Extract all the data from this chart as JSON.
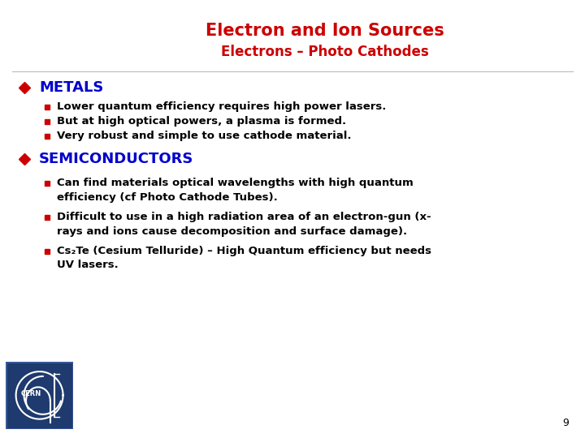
{
  "title": "Electron and Ion Sources",
  "subtitle": "Electrons – Photo Cathodes",
  "title_color": "#CC0000",
  "subtitle_color": "#CC0000",
  "title_fontsize": 15,
  "subtitle_fontsize": 12,
  "background_color": "#FFFFFF",
  "bullet1_header": "METALS",
  "bullet2_header": "SEMICONDUCTORS",
  "header_color": "#0000CC",
  "header_fontsize": 13,
  "bullet_color": "#CC0000",
  "sub_bullet_color": "#CC0000",
  "text_color": "#000000",
  "sub_fontsize": 9.5,
  "metals_bullets": [
    "Lower quantum efficiency requires high power lasers.",
    "But at high optical powers, a plasma is formed.",
    "Very robust and simple to use cathode material."
  ],
  "semi_bullet1_line1": "Can find materials optical wavelengths with high quantum",
  "semi_bullet1_line2": "efficiency (cf Photo Cathode Tubes).",
  "semi_bullet2_line1": "Difficult to use in a high radiation area of an electron-gun (x-",
  "semi_bullet2_line2": "rays and ions cause decomposition and surface damage).",
  "semi_bullet3_line1": "Cs₂Te (Cesium Telluride) – High Quantum efficiency but needs",
  "semi_bullet3_line2": "UV lasers.",
  "page_number": "9",
  "logo_facecolor": "#1e3a6e",
  "logo_border": "#3a5a9a"
}
